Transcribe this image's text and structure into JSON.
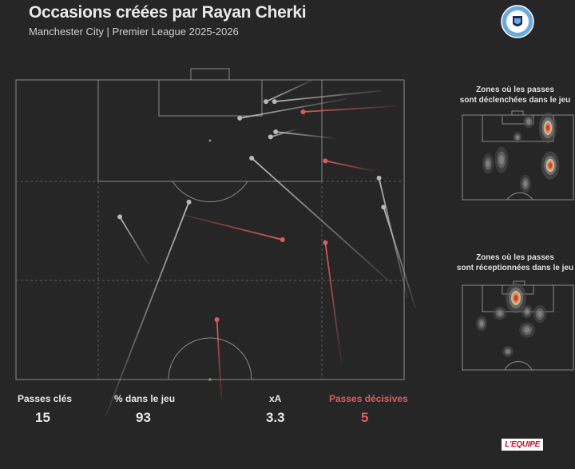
{
  "header": {
    "title": "Occasions créées par Rayan Cherki",
    "subtitle": "Manchester City | Premier League 2025-2026",
    "club_logo_icon": "manchester-city-crest-icon",
    "club_logo_text": "MANCHESTER CITY"
  },
  "heatmaps": {
    "origin_title_line1": "Zones où les passes",
    "origin_title_line2": "sont déclenchées dans le jeu",
    "reception_title_line1": "Zones où les passes",
    "reception_title_line2": "sont réceptionnées dans le jeu"
  },
  "stats": [
    {
      "label": "Passes clés",
      "value": "15"
    },
    {
      "label": "% dans le jeu",
      "value": "93"
    },
    {
      "label": "xA",
      "value": "3.3"
    },
    {
      "label": "Passes décisives",
      "value": "5"
    }
  ],
  "brand": "L'EQUIPE",
  "colors": {
    "background": "#262626",
    "pitch_lines": "#8a8a8a",
    "key_pass": "#b8b8b8",
    "assist": "#e05b5b"
  },
  "chart_data": {
    "type": "scatter",
    "description_units": "pitch coordinates in metres, x = width (0-68, left to right), y = distance from attacking goal line (0-52.5)",
    "pitch": {
      "width_m": 68,
      "half_length_m": 52.5
    },
    "passes": [
      {
        "kind": "key_pass",
        "start": [
          43.8,
          3.8
        ],
        "end": [
          52.0,
          0.0
        ]
      },
      {
        "kind": "key_pass",
        "start": [
          45.3,
          3.8
        ],
        "end": [
          64.0,
          1.9
        ]
      },
      {
        "kind": "assist",
        "start": [
          50.3,
          5.6
        ],
        "end": [
          66.5,
          4.6
        ]
      },
      {
        "kind": "key_pass",
        "start": [
          39.2,
          6.7
        ],
        "end": [
          58.0,
          3.3
        ]
      },
      {
        "kind": "key_pass",
        "start": [
          45.5,
          9.1
        ],
        "end": [
          55.5,
          10.2
        ]
      },
      {
        "kind": "key_pass",
        "start": [
          44.6,
          10.0
        ],
        "end": [
          49.0,
          8.7
        ]
      },
      {
        "kind": "key_pass",
        "start": [
          41.3,
          13.7
        ],
        "end": [
          66.0,
          35.8
        ]
      },
      {
        "kind": "assist",
        "start": [
          54.2,
          14.2
        ],
        "end": [
          62.8,
          16.0
        ]
      },
      {
        "kind": "key_pass",
        "start": [
          63.6,
          17.2
        ],
        "end": [
          68.5,
          38.0
        ]
      },
      {
        "kind": "key_pass",
        "start": [
          30.3,
          21.4
        ],
        "end": [
          15.7,
          59.0
        ]
      },
      {
        "kind": "key_pass",
        "start": [
          64.4,
          22.3
        ],
        "end": [
          70.0,
          40.0
        ]
      },
      {
        "kind": "key_pass",
        "start": [
          18.2,
          24.0
        ],
        "end": [
          23.2,
          32.3
        ]
      },
      {
        "kind": "assist",
        "start": [
          46.7,
          28.0
        ],
        "end": [
          28.7,
          23.5
        ]
      },
      {
        "kind": "assist",
        "start": [
          54.2,
          28.5
        ],
        "end": [
          57.0,
          49.5
        ]
      },
      {
        "kind": "assist",
        "start": [
          35.2,
          42.0
        ],
        "end": [
          36.0,
          56.0
        ]
      }
    ]
  }
}
